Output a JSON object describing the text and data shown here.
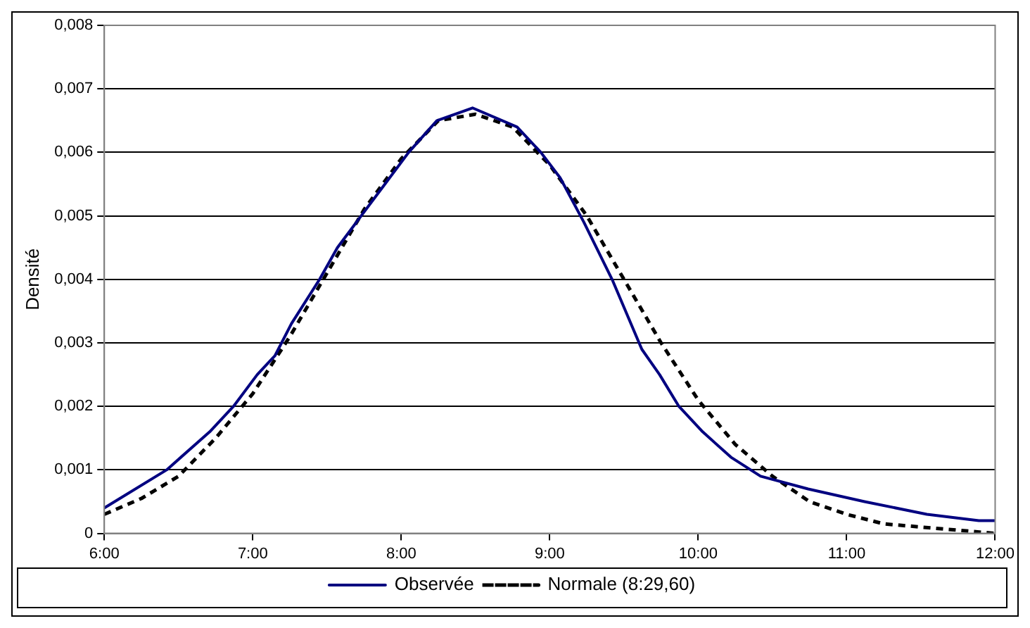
{
  "chart_data": {
    "type": "line",
    "ylabel": "Densité",
    "xlim": [
      6,
      12
    ],
    "ylim": [
      0,
      0.008
    ],
    "xticks": [
      {
        "value": 6,
        "label": "6:00"
      },
      {
        "value": 7,
        "label": "7:00"
      },
      {
        "value": 8,
        "label": "8:00"
      },
      {
        "value": 9,
        "label": "9:00"
      },
      {
        "value": 10,
        "label": "10:00"
      },
      {
        "value": 11,
        "label": "11:00"
      },
      {
        "value": 12,
        "label": "12:00"
      }
    ],
    "yticks": [
      0,
      {
        "value": 0.001,
        "label": "0,001"
      },
      {
        "value": 0.002,
        "label": "0,002"
      },
      {
        "value": 0.003,
        "label": "0,003"
      },
      {
        "value": 0.004,
        "label": "0,004"
      },
      {
        "value": 0.005,
        "label": "0,005"
      },
      {
        "value": 0.006,
        "label": "0,006"
      },
      {
        "value": 0.007,
        "label": "0,007"
      },
      {
        "value": 0.008,
        "label": "0,008"
      }
    ],
    "grid": "y",
    "legend": "bottom",
    "marker": "none",
    "series": [
      {
        "name": "Observée",
        "color": "#000080",
        "line_style": "solid",
        "x": [
          6,
          6.42,
          6.71,
          6.87,
          7.03,
          7.15,
          7.26,
          7.45,
          7.57,
          7.73,
          7.89,
          8.05,
          8.24,
          8.48,
          8.78,
          8.94,
          9.07,
          9.23,
          9.42,
          9.62,
          9.74,
          9.87,
          10.03,
          10.22,
          10.42,
          10.74,
          11.12,
          11.54,
          11.89,
          12
        ],
        "values": [
          0.0004,
          0.001,
          0.0016,
          0.002,
          0.0025,
          0.0028,
          0.0033,
          0.004,
          0.0045,
          0.005,
          0.0055,
          0.006,
          0.0065,
          0.0067,
          0.0064,
          0.006,
          0.0056,
          0.0049,
          0.004,
          0.0029,
          0.0025,
          0.002,
          0.0016,
          0.0012,
          0.0009,
          0.0007,
          0.0005,
          0.0003,
          0.0002,
          0.0002
        ]
      },
      {
        "name": "Normale (8:29,60)",
        "color": "#000000",
        "line_style": "dashed",
        "x": [
          6,
          6.25,
          6.5,
          6.75,
          7,
          7.25,
          7.5,
          7.75,
          8,
          8.25,
          8.5,
          8.75,
          9,
          9.25,
          9.5,
          9.75,
          10,
          10.25,
          10.5,
          10.75,
          11,
          11.25,
          11.5,
          12
        ],
        "values": [
          0.0003,
          0.00055,
          0.0009,
          0.0015,
          0.0022,
          0.0031,
          0.0041,
          0.0051,
          0.0059,
          0.0065,
          0.0066,
          0.0064,
          0.0058,
          0.005,
          0.004,
          0.003,
          0.0021,
          0.0014,
          0.0009,
          0.0005,
          0.0003,
          0.00015,
          0.0001,
          0
        ]
      }
    ]
  }
}
